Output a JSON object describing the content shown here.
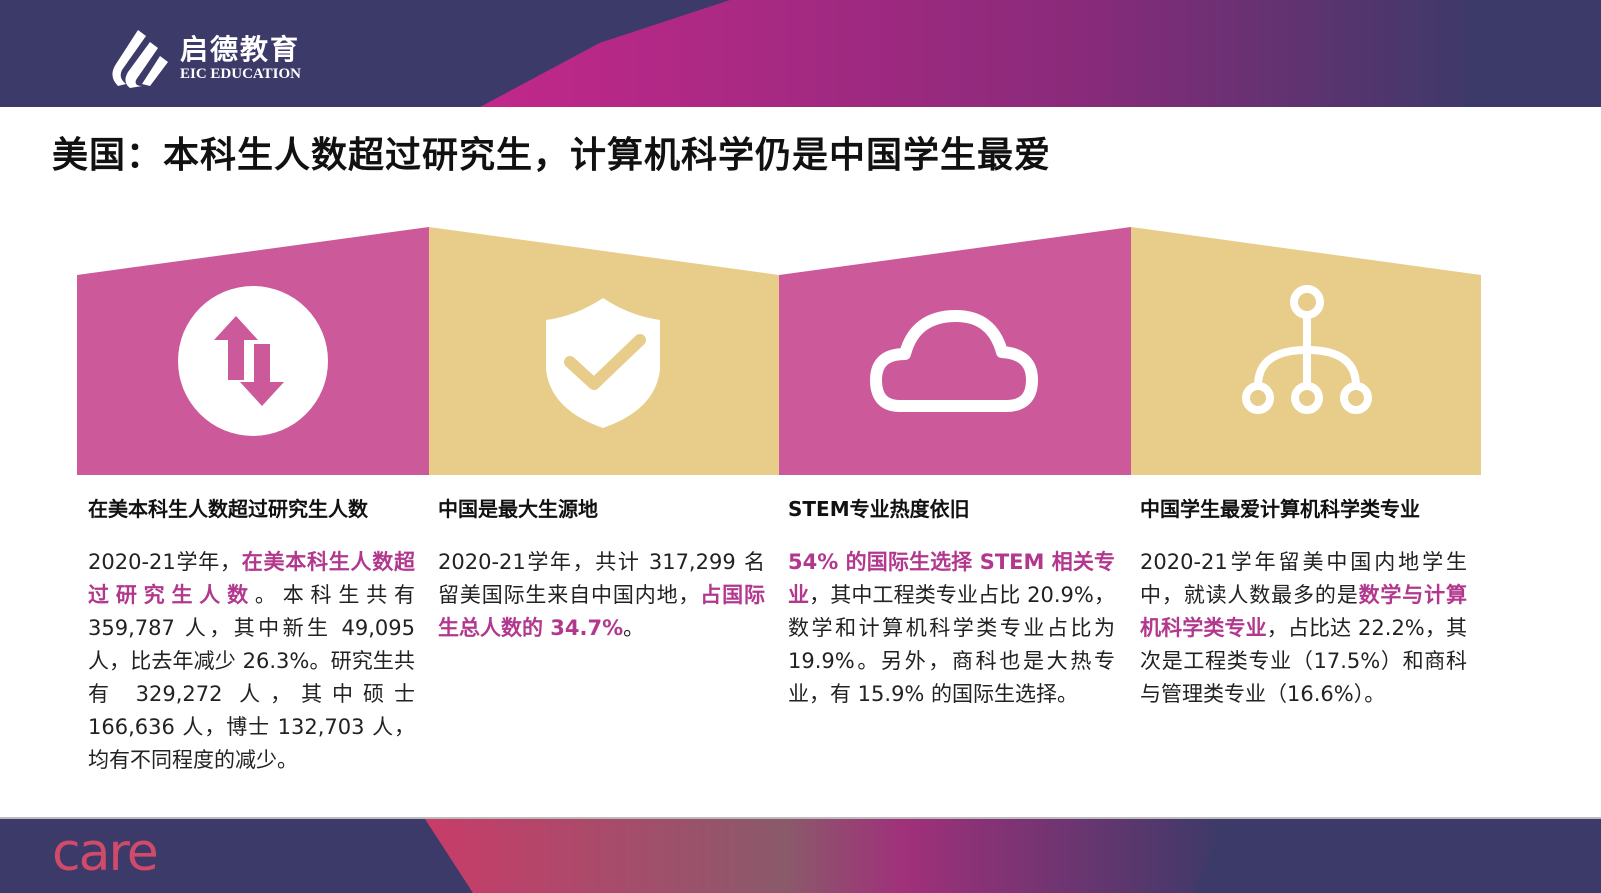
{
  "header": {
    "logo_cn": "启德教育",
    "logo_en": "EIC EDUCATION"
  },
  "title": "美国：本科生人数超过研究生，计算机科学仍是中国学生最爱",
  "colors": {
    "navy": "#3c3a68",
    "pink": "#cc5a9a",
    "gold": "#e8cc8a",
    "highlight": "#b2388e"
  },
  "panels": [
    {
      "icon": "swap-arrows-icon",
      "heading": "在美本科生人数超过研究生人数",
      "body": [
        {
          "t": "2020-21学年，"
        },
        {
          "t": "在美本科生人数超过研究生人数",
          "hl": true
        },
        {
          "t": "。本科生共有 359,787 人，其中新生 49,095 人，比去年减少 26.3%。研究生共有 329,272 人，其中硕士 166,636 人，博士 132,703 人，均有不同程度的减少。"
        }
      ]
    },
    {
      "icon": "shield-check-icon",
      "heading": "中国是最大生源地",
      "body": [
        {
          "t": "2020-21学年，共计 317,299 名留美国际生来自中国内地，"
        },
        {
          "t": "占国际生总人数的 34.7%",
          "hl": true
        },
        {
          "t": "。"
        }
      ]
    },
    {
      "icon": "cloud-icon",
      "heading": "STEM专业热度依旧",
      "body": [
        {
          "t": "54% 的国际生选择 STEM 相关专业",
          "hl": true
        },
        {
          "t": "，其中工程类专业占比 20.9%，数学和计算机科学类专业占比为 19.9%。另外，商科也是大热专业，有 15.9% 的国际生选择。"
        }
      ]
    },
    {
      "icon": "hierarchy-icon",
      "heading": "中国学生最爱计算机科学类专业",
      "body": [
        {
          "t": "2020-21学年留美中国内地学生中，就读人数最多的是"
        },
        {
          "t": "数学与计算机科学类专业",
          "hl": true
        },
        {
          "t": "，占比达 22.2%，其次是工程类专业（17.5%）和商科与管理类专业（16.6%）。"
        }
      ]
    }
  ],
  "footer": {
    "logo": "care"
  }
}
